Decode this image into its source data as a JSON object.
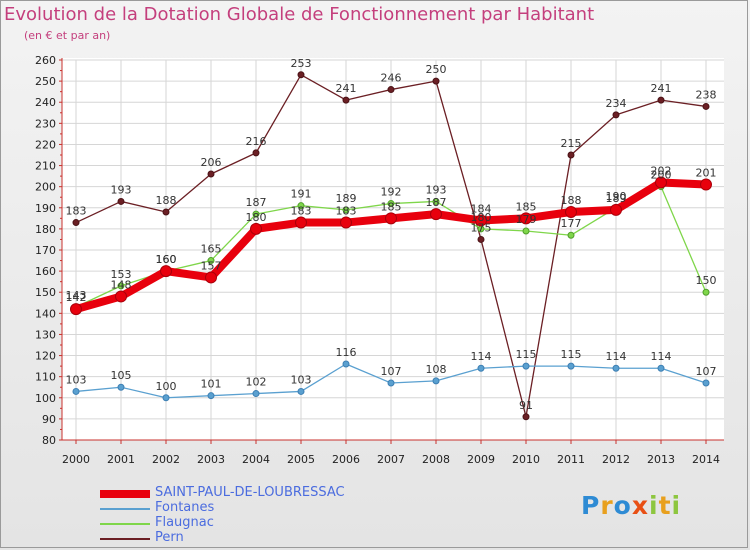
{
  "chart_data": {
    "type": "line",
    "title": "Evolution de la Dotation Globale de Fonctionnement par Habitant",
    "subtitle": "(en € et par an)",
    "xlabel": "",
    "ylabel": "",
    "x": [
      "2000",
      "2001",
      "2002",
      "2003",
      "2004",
      "2005",
      "2006",
      "2007",
      "2008",
      "2009",
      "2010",
      "2011",
      "2012",
      "2013",
      "2014"
    ],
    "ylim": [
      80,
      260
    ],
    "yticks": [
      "80",
      "90",
      "100",
      "110",
      "120",
      "130",
      "140",
      "150",
      "160",
      "170",
      "180",
      "190",
      "200",
      "210",
      "220",
      "230",
      "240",
      "250",
      "260"
    ],
    "legend_position": "bottom-left",
    "series": [
      {
        "name": "SAINT-PAUL-DE-LOUBRESSAC",
        "color": "#e8000d",
        "values": [
          142,
          148,
          160,
          157,
          180,
          183,
          183,
          185,
          187,
          184,
          185,
          188,
          189,
          202,
          201
        ],
        "labels": [
          "142",
          "148",
          "160",
          "157",
          "180",
          "183",
          "183",
          "185",
          "187",
          "184",
          "185",
          "188",
          "189",
          "202",
          "201"
        ]
      },
      {
        "name": "Fontanes",
        "color": "#5aa0d0",
        "values": [
          103,
          105,
          100,
          101,
          102,
          103,
          116,
          107,
          108,
          114,
          115,
          115,
          114,
          114,
          107
        ],
        "labels": [
          "103",
          "105",
          "100",
          "101",
          "102",
          "103",
          "116",
          "107",
          "108",
          "114",
          "115",
          "115",
          "114",
          "114",
          "107"
        ]
      },
      {
        "name": "Flaugnac",
        "color": "#7fd64a",
        "values": [
          143,
          153,
          160,
          165,
          187,
          191,
          189,
          192,
          193,
          180,
          179,
          177,
          190,
          200,
          150
        ],
        "labels": [
          "143",
          "153",
          "160",
          "165",
          "187",
          "191",
          "189",
          "192",
          "193",
          "180",
          "179",
          "177",
          "190",
          "200",
          "150"
        ]
      },
      {
        "name": "Pern",
        "color": "#6b1f24",
        "values": [
          183,
          193,
          188,
          206,
          216,
          253,
          241,
          246,
          250,
          175,
          91,
          215,
          234,
          241,
          238
        ],
        "labels": [
          "183",
          "193",
          "188",
          "206",
          "216",
          "253",
          "241",
          "246",
          "250",
          "175",
          "91",
          "215",
          "234",
          "241",
          "238"
        ]
      }
    ]
  },
  "brand": {
    "letters": [
      "P",
      "r",
      "o",
      "x",
      "i",
      "t",
      "i"
    ],
    "colors": [
      "#2e8bd4",
      "#e8a01e",
      "#2e8bd4",
      "#e84f14",
      "#8dc63f",
      "#e8a01e",
      "#8dc63f"
    ]
  }
}
